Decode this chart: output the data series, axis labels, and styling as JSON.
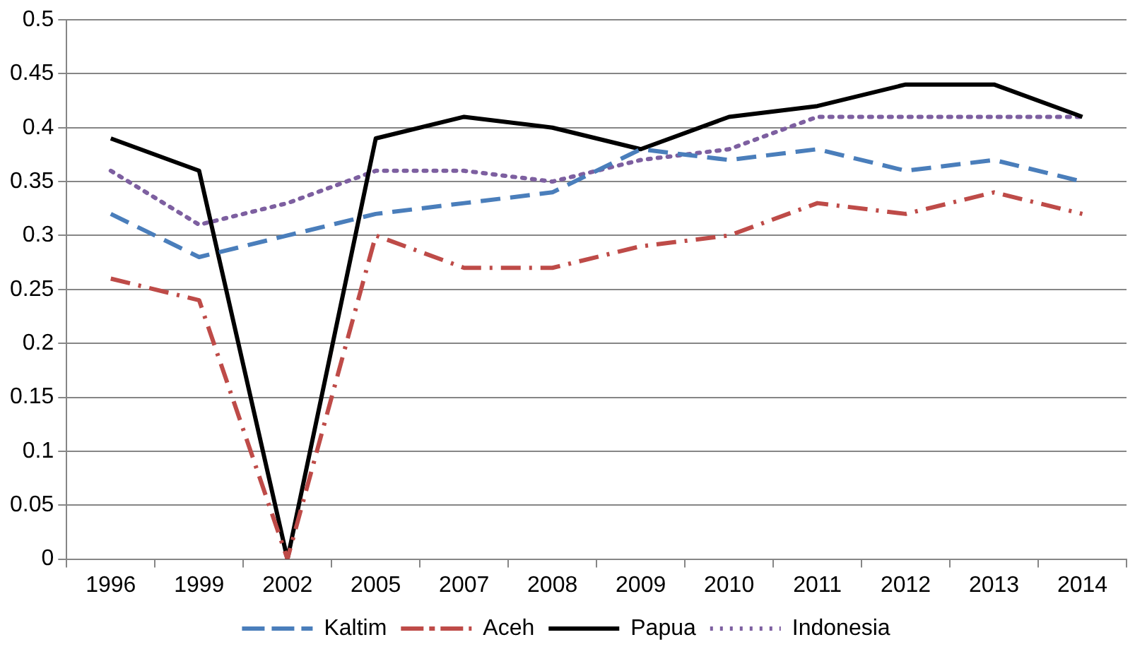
{
  "chart_data": {
    "type": "line",
    "categories": [
      "1996",
      "1999",
      "2002",
      "2005",
      "2007",
      "2008",
      "2009",
      "2010",
      "2011",
      "2012",
      "2013",
      "2014"
    ],
    "series": [
      {
        "name": "Kaltim",
        "color": "#4a7ebb",
        "line_style": "dashed",
        "values": [
          0.32,
          0.28,
          0.3,
          0.32,
          0.33,
          0.34,
          0.38,
          0.37,
          0.38,
          0.36,
          0.37,
          0.35
        ]
      },
      {
        "name": "Aceh",
        "color": "#be4b48",
        "line_style": "dashdot",
        "values": [
          0.26,
          0.24,
          0,
          0.3,
          0.27,
          0.27,
          0.29,
          0.3,
          0.33,
          0.32,
          0.34,
          0.32
        ]
      },
      {
        "name": "Papua",
        "color": "#000000",
        "line_style": "solid",
        "values": [
          0.39,
          0.36,
          0,
          0.39,
          0.41,
          0.4,
          0.38,
          0.41,
          0.42,
          0.44,
          0.44,
          0.41
        ]
      },
      {
        "name": "Indonesia",
        "color": "#7d5fa0",
        "line_style": "dotted",
        "values": [
          0.36,
          0.31,
          0.33,
          0.36,
          0.36,
          0.35,
          0.37,
          0.38,
          0.41,
          0.41,
          0.41,
          0.41
        ]
      }
    ],
    "ylim": [
      0,
      0.5
    ],
    "yticks": [
      0,
      0.05,
      0.1,
      0.15,
      0.2,
      0.25,
      0.3,
      0.35,
      0.4,
      0.45,
      0.5
    ],
    "grid": "y",
    "legend": "bottom",
    "marker": "none"
  }
}
